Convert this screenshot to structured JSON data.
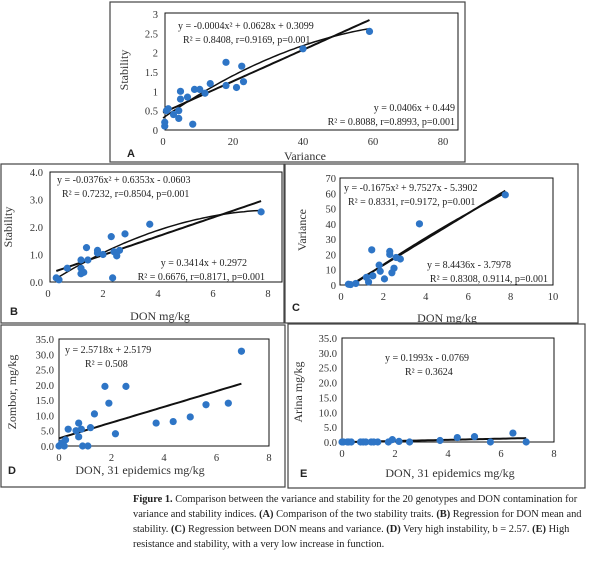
{
  "chart_data": [
    {
      "panel": "A",
      "type": "scatter",
      "xlabel": "Variance",
      "ylabel": "Stability",
      "xlim": [
        0,
        80
      ],
      "ylim": [
        0,
        3
      ],
      "xticks": [
        "0",
        "20",
        "40",
        "60",
        "80"
      ],
      "yticks": [
        "0",
        "0.5",
        "1",
        "1.5",
        "2",
        "2.5",
        "3"
      ],
      "marker_color": "#2E75C6",
      "x": [
        0.5,
        0.5,
        1,
        1.5,
        3,
        4.5,
        4.5,
        5,
        5,
        7,
        8.5,
        9,
        10.5,
        12,
        13.5,
        18,
        18,
        21,
        22.5,
        23,
        40,
        59
      ],
      "y": [
        0.1,
        0.2,
        0.5,
        0.55,
        0.4,
        0.3,
        0.5,
        0.8,
        1.0,
        0.85,
        0.15,
        1.05,
        1.05,
        0.95,
        1.2,
        1.75,
        1.15,
        1.1,
        1.65,
        1.25,
        2.1,
        2.55
      ],
      "fits": [
        {
          "kind": "polynomial",
          "coef": [
            0.3099,
            0.0628,
            -0.0004
          ],
          "range": [
            0,
            59
          ],
          "eq": "y = -0.0004x² + 0.0628x + 0.3099",
          "stats": "R² = 0.8408, r=0.9169, p=0.001"
        },
        {
          "kind": "linear",
          "coef": [
            0.449,
            0.0406
          ],
          "range": [
            0,
            59
          ],
          "eq": "y = 0.0406x + 0.449",
          "stats": "R² = 0.8088, r=0.8993, p=0.001"
        }
      ]
    },
    {
      "panel": "B",
      "type": "scatter",
      "xlabel": "DON mg/kg",
      "ylabel": "Stability",
      "xlim": [
        0,
        8
      ],
      "ylim": [
        0,
        4
      ],
      "xticks": [
        "0",
        "2",
        "4",
        "6",
        "8"
      ],
      "yticks": [
        "0.0",
        "1.0",
        "2.0",
        "3.0",
        "4.0"
      ],
      "marker_color": "#2E75C6",
      "x": [
        0.3,
        0.4,
        0.7,
        1.2,
        1.2,
        1.2,
        1.3,
        1.4,
        1.45,
        1.8,
        1.8,
        2.0,
        2.3,
        2.35,
        2.4,
        2.5,
        2.6,
        2.8,
        3.7,
        7.75
      ],
      "y": [
        0.15,
        0.08,
        0.5,
        0.8,
        0.5,
        0.3,
        0.35,
        1.25,
        0.8,
        1.15,
        1.05,
        1.0,
        1.65,
        0.15,
        1.1,
        0.95,
        1.15,
        1.75,
        2.1,
        2.55
      ],
      "fits": [
        {
          "kind": "polynomial",
          "coef": [
            -0.0603,
            0.6353,
            -0.0376
          ],
          "range": [
            0.3,
            7.75
          ],
          "eq": "y = -0.0376x² + 0.6353x - 0.0603",
          "stats": "R² = 0.7232, r=0.8504, p=0.001"
        },
        {
          "kind": "linear",
          "coef": [
            0.2972,
            0.3414
          ],
          "range": [
            0.3,
            7.75
          ],
          "eq": "y = 0.3414x + 0.2972",
          "stats": "R² = 0.6676, r=0.8171, p=0.001"
        }
      ]
    },
    {
      "panel": "C",
      "type": "scatter",
      "xlabel": "DON mg/kg",
      "ylabel": "Variance",
      "xlim": [
        0,
        10
      ],
      "ylim": [
        0,
        70
      ],
      "xticks": [
        "0",
        "2",
        "4",
        "6",
        "8",
        "10"
      ],
      "yticks": [
        "0",
        "10",
        "20",
        "30",
        "40",
        "50",
        "60",
        "70"
      ],
      "marker_color": "#2E75C6",
      "x": [
        0.35,
        0.45,
        0.7,
        1.2,
        1.3,
        1.45,
        1.5,
        1.8,
        1.85,
        2.05,
        2.3,
        2.3,
        2.4,
        2.5,
        2.6,
        2.8,
        3.7,
        7.75
      ],
      "y": [
        0.5,
        0.3,
        1,
        5,
        2,
        23,
        6,
        13,
        9,
        4,
        22,
        20,
        8,
        11,
        18,
        17,
        40,
        59
      ],
      "fits": [
        {
          "kind": "polynomial",
          "coef": [
            -5.3902,
            9.7527,
            -0.1675
          ],
          "range": [
            0.56,
            7.75
          ],
          "eq": "y = -0.1675x² + 9.7527x - 5.3902",
          "stats": "R² = 0.8331, r=0.9172, p=0.001"
        },
        {
          "kind": "linear",
          "coef": [
            -3.7978,
            8.4436
          ],
          "range": [
            0.45,
            7.75
          ],
          "eq": "y = 8.4436x - 3.7978",
          "stats": "R² = 0.8308, 0.9114, p=0.001"
        }
      ]
    },
    {
      "panel": "D",
      "type": "scatter",
      "xlabel": "DON, 31 epidemics mg/kg",
      "ylabel": "Zombor, mg/kg",
      "xlim": [
        0,
        8
      ],
      "ylim": [
        0,
        35
      ],
      "xticks": [
        "0",
        "2",
        "4",
        "6",
        "8"
      ],
      "yticks": [
        "0.0",
        "5.0",
        "10.0",
        "15.0",
        "20.0",
        "25.0",
        "30.0",
        "35.0"
      ],
      "marker_color": "#2E75C6",
      "x": [
        0,
        0.1,
        0.15,
        0.2,
        0.25,
        0.35,
        0.65,
        0.75,
        0.75,
        0.85,
        0.9,
        1.1,
        1.2,
        1.35,
        1.75,
        1.9,
        2.15,
        2.55,
        3.7,
        4.35,
        5.0,
        5.6,
        6.45,
        6.95
      ],
      "y": [
        0,
        1,
        0.5,
        0,
        2,
        5.5,
        5,
        7.5,
        3,
        5.5,
        0,
        0,
        6,
        10.5,
        19.5,
        14,
        4,
        19.5,
        7.5,
        8,
        9.5,
        13.5,
        14,
        31
      ],
      "fits": [
        {
          "kind": "linear",
          "coef": [
            2.5179,
            2.5718
          ],
          "range": [
            0,
            6.95
          ],
          "eq": "y = 2.5718x + 2.5179",
          "stats": "R² = 0.508"
        }
      ]
    },
    {
      "panel": "E",
      "type": "scatter",
      "xlabel": "DON, 31 epidemics mg/kg",
      "ylabel": "Arina mg/kg",
      "xlim": [
        0,
        8
      ],
      "ylim": [
        0,
        35
      ],
      "xticks": [
        "0",
        "2",
        "4",
        "6",
        "8"
      ],
      "yticks": [
        "0.0",
        "5.0",
        "10.0",
        "15.0",
        "20.0",
        "25.0",
        "30.0",
        "35.0"
      ],
      "marker_color": "#2E75C6",
      "x": [
        0,
        0.05,
        0.2,
        0.25,
        0.35,
        0.7,
        0.8,
        0.9,
        1.1,
        1.2,
        1.35,
        1.75,
        1.9,
        2.15,
        2.55,
        3.7,
        4.35,
        5.0,
        5.6,
        6.45,
        6.95
      ],
      "y": [
        0,
        0,
        0,
        0,
        0,
        0,
        0,
        0,
        0,
        0,
        0,
        0,
        0.8,
        0.2,
        0,
        0.5,
        1.5,
        1.8,
        0,
        3,
        0
      ],
      "fits": [
        {
          "kind": "linear",
          "coef": [
            -0.0769,
            0.1993
          ],
          "range": [
            0.4,
            6.95
          ],
          "eq": "y = 0.1993x - 0.0769",
          "stats": "R² = 0.3624"
        }
      ]
    }
  ],
  "caption": {
    "label": "Figure 1.",
    "t1": " Comparison between the variance and stability for the 20 genotypes and DON contamination for variance and stability indices. ",
    "a": "(A)",
    "t2": " Comparison of the two stability traits. ",
    "b": "(B)",
    "t3": " Regression for DON mean and stability. ",
    "c": "(C)",
    "t4": " Regression between DON means and variance. ",
    "d": "(D)",
    "t5": " Very high instability, b = 2.57. ",
    "e": "(E)",
    "t6": " High resistance and stability, with a very low increase in function."
  }
}
